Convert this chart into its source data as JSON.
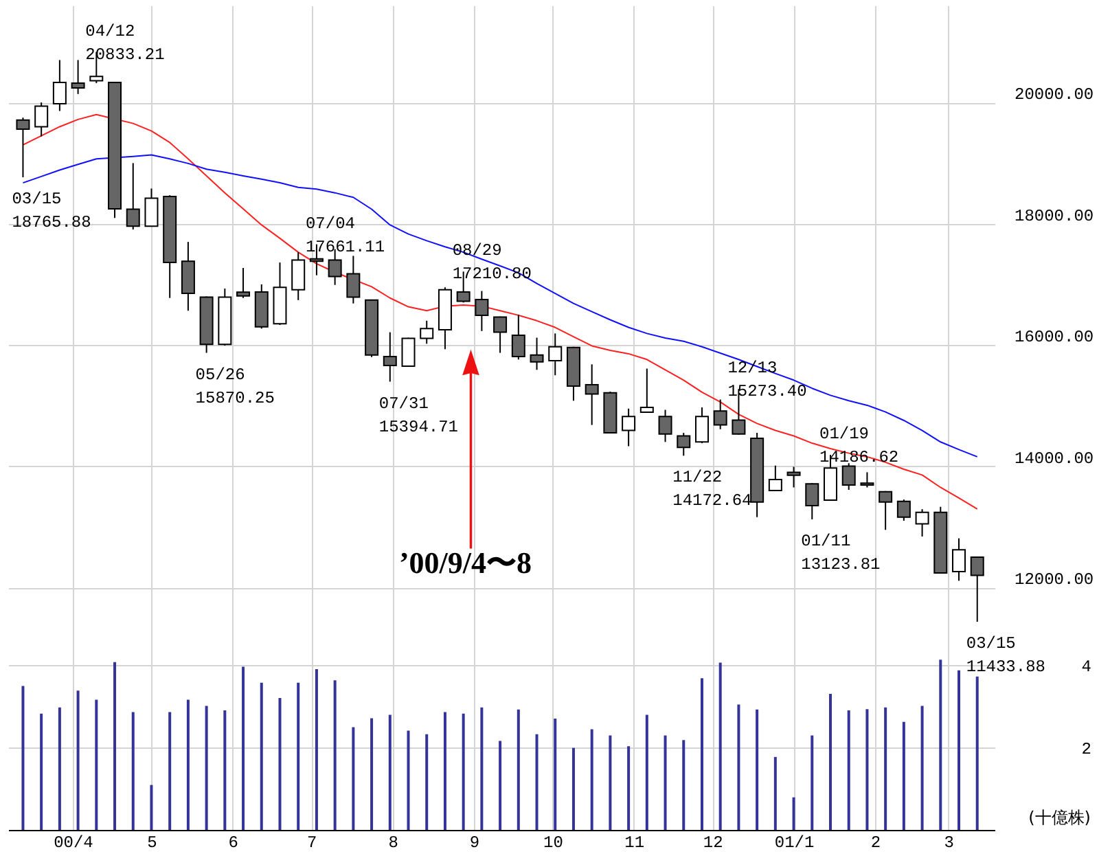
{
  "chart_data": {
    "type": "candlestick",
    "x": [
      "2000-03-13",
      "2000-03-20",
      "2000-03-27",
      "2000-04-03",
      "2000-04-10",
      "2000-04-17",
      "2000-04-24",
      "2000-05-01",
      "2000-05-08",
      "2000-05-15",
      "2000-05-22",
      "2000-05-29",
      "2000-06-05",
      "2000-06-12",
      "2000-06-19",
      "2000-06-26",
      "2000-07-03",
      "2000-07-10",
      "2000-07-17",
      "2000-07-24",
      "2000-07-31",
      "2000-08-07",
      "2000-08-14",
      "2000-08-21",
      "2000-08-28",
      "2000-09-04",
      "2000-09-11",
      "2000-09-18",
      "2000-09-25",
      "2000-10-02",
      "2000-10-09",
      "2000-10-16",
      "2000-10-23",
      "2000-10-30",
      "2000-11-06",
      "2000-11-13",
      "2000-11-20",
      "2000-11-27",
      "2000-12-04",
      "2000-12-11",
      "2000-12-18",
      "2000-12-25",
      "2001-01-01",
      "2001-01-08",
      "2001-01-15",
      "2001-01-22",
      "2001-01-29",
      "2001-02-05",
      "2001-02-12",
      "2001-02-19",
      "2001-02-26",
      "2001-03-05",
      "2001-03-12"
    ],
    "ohlc": [
      [
        19710,
        19750,
        18765.88,
        19560
      ],
      [
        19600,
        20000,
        19440,
        19940
      ],
      [
        19980,
        20700,
        19860,
        20330
      ],
      [
        20320,
        20700,
        20140,
        20240
      ],
      [
        20360,
        20833.21,
        20320,
        20430
      ],
      [
        20330,
        20340,
        18095,
        18245
      ],
      [
        18240,
        19000,
        17905,
        17960
      ],
      [
        17960,
        18580,
        17950,
        18420
      ],
      [
        18450,
        18470,
        16775,
        17360
      ],
      [
        17380,
        17700,
        16565,
        16850
      ],
      [
        16790,
        16800,
        15870.25,
        16010
      ],
      [
        16010,
        16930,
        15990,
        16790
      ],
      [
        16870,
        17270,
        16775,
        16810
      ],
      [
        16875,
        17000,
        16270,
        16300
      ],
      [
        16350,
        17360,
        16330,
        16950
      ],
      [
        16910,
        17530,
        16740,
        17400
      ],
      [
        17420,
        17661.11,
        17150,
        17380
      ],
      [
        17400,
        17580,
        16990,
        17130
      ],
      [
        17175,
        17470,
        16685,
        16790
      ],
      [
        16740,
        16750,
        15800,
        15835
      ],
      [
        15810,
        16210,
        15394.71,
        15660
      ],
      [
        15650,
        16120,
        15640,
        16110
      ],
      [
        16110,
        16400,
        16020,
        16270
      ],
      [
        16250,
        16950,
        15930,
        16910
      ],
      [
        16875,
        17210.8,
        16700,
        16720
      ],
      [
        16750,
        16890,
        16230,
        16490
      ],
      [
        16460,
        16470,
        15870,
        16210
      ],
      [
        16160,
        16500,
        15760,
        15810
      ],
      [
        15835,
        16120,
        15590,
        15720
      ],
      [
        15740,
        16190,
        15500,
        15970
      ],
      [
        15960,
        15970,
        15080,
        15320
      ],
      [
        15345,
        15680,
        14680,
        15190
      ],
      [
        15210,
        15230,
        14540,
        14550
      ],
      [
        14590,
        14950,
        14330,
        14820
      ],
      [
        14890,
        15610,
        14880,
        14970
      ],
      [
        14820,
        14930,
        14400,
        14530
      ],
      [
        14500,
        14550,
        14172.64,
        14310
      ],
      [
        14400,
        14970,
        14380,
        14820
      ],
      [
        14910,
        15100,
        14610,
        14680
      ],
      [
        14760,
        15273.4,
        14520,
        14530
      ],
      [
        14460,
        14550,
        13160,
        13410
      ],
      [
        13600,
        14010,
        13590,
        13780
      ],
      [
        13900,
        13990,
        13650,
        13850
      ],
      [
        13710,
        13720,
        13123.81,
        13350
      ],
      [
        13440,
        14186.62,
        13430,
        13970
      ],
      [
        14000,
        14050,
        13610,
        13690
      ],
      [
        13720,
        13900,
        13650,
        13690
      ],
      [
        13580,
        13590,
        12950,
        13410
      ],
      [
        13420,
        13450,
        13100,
        13160
      ],
      [
        13050,
        13290,
        12840,
        13240
      ],
      [
        13240,
        13330,
        12230,
        12240
      ],
      [
        12260,
        12810,
        12110,
        12620
      ],
      [
        12500,
        12510,
        11433.88,
        12200
      ]
    ],
    "series": [
      {
        "type": "line",
        "color": "#ff2020",
        "values": [
          19300,
          19450,
          19600,
          19720,
          19800,
          null,
          19655,
          19530,
          19340,
          19070,
          18790,
          18510,
          18245,
          17980,
          17760,
          17530,
          17340,
          17200,
          null,
          16960,
          16775,
          16630,
          16565,
          16640,
          16660,
          16640,
          16565,
          16490,
          16400,
          16290,
          16135,
          15985,
          15910,
          15855,
          15760,
          15590,
          15420,
          15220,
          15060,
          14855,
          14705,
          14590,
          14500,
          14380,
          14290,
          14215,
          14155,
          14065,
          13950,
          13855,
          13650,
          13475,
          13295
        ]
      },
      {
        "type": "line",
        "color": "#1010ff",
        "values": [
          18675,
          18780,
          18885,
          18980,
          19070,
          null,
          19110,
          19135,
          19070,
          18995,
          18900,
          18850,
          18790,
          18735,
          18675,
          18600,
          18570,
          18510,
          18435,
          18240,
          17980,
          17830,
          17720,
          17620,
          17530,
          17415,
          17305,
          17190,
          17015,
          16850,
          16685,
          16550,
          16415,
          16290,
          16190,
          16115,
          16060,
          15970,
          15865,
          15760,
          15645,
          15530,
          15420,
          15285,
          15170,
          15080,
          15005,
          14895,
          14755,
          14590,
          14400,
          14275,
          14155
        ]
      },
      {
        "type": "bar",
        "axis": "y2",
        "color": "#333399",
        "values": [
          3.49,
          2.82,
          2.97,
          3.38,
          3.16,
          4.07,
          2.86,
          1.09,
          2.86,
          3.16,
          3.01,
          2.9,
          3.96,
          3.57,
          3.2,
          3.57,
          3.9,
          3.63,
          2.49,
          2.71,
          2.79,
          2.41,
          2.32,
          2.86,
          2.82,
          2.97,
          2.16,
          2.92,
          2.32,
          2.7,
          1.99,
          2.44,
          2.29,
          2.03,
          2.79,
          2.29,
          2.18,
          3.68,
          4.06,
          3.04,
          2.92,
          1.77,
          0.79,
          2.29,
          3.3,
          2.9,
          2.93,
          2.97,
          2.62,
          3.01,
          4.13,
          3.87,
          3.72
        ]
      }
    ],
    "xlim": [
      "2000-03-10",
      "2001-03-16"
    ],
    "xticks": [
      {
        "value": "2000-04-01",
        "label": "00/4"
      },
      {
        "value": "2000-05-01",
        "label": "5"
      },
      {
        "value": "2000-06-01",
        "label": "6"
      },
      {
        "value": "2000-07-01",
        "label": "7"
      },
      {
        "value": "2000-08-01",
        "label": "8"
      },
      {
        "value": "2000-09-01",
        "label": "9"
      },
      {
        "value": "2000-10-01",
        "label": "10"
      },
      {
        "value": "2000-11-01",
        "label": "11"
      },
      {
        "value": "2000-12-01",
        "label": "12"
      },
      {
        "value": "2001-01-01",
        "label": "01/1"
      },
      {
        "value": "2001-02-01",
        "label": "2"
      },
      {
        "value": "2001-03-01",
        "label": "3"
      }
    ],
    "ylim": [
      8000,
      21600
    ],
    "yticks": [
      {
        "value": 12000,
        "label": "12000.00"
      },
      {
        "value": 14000,
        "label": "14000.00"
      },
      {
        "value": 16000,
        "label": "16000.00"
      },
      {
        "value": 18000,
        "label": "18000.00"
      },
      {
        "value": 20000,
        "label": "20000.00"
      }
    ],
    "y2lim": [
      0,
      20
    ],
    "y2ticks": [
      2,
      4
    ],
    "grid": true,
    "annotations": [
      {
        "text": "03/15\n18765.88",
        "x": "2000-03-13",
        "y": 18765.88
      },
      {
        "text": "04/12\n20833.21",
        "x": "2000-04-10",
        "y": 20833.21
      },
      {
        "text": "05/26\n15870.25",
        "x": "2000-05-22",
        "y": 15870.25
      },
      {
        "text": "07/04\n17661.11",
        "x": "2000-07-03",
        "y": 17661.11
      },
      {
        "text": "07/31\n15394.71",
        "x": "2000-07-31",
        "y": 15394.71
      },
      {
        "text": "08/29\n17210.80",
        "x": "2000-08-28",
        "y": 17210.8
      },
      {
        "text": "11/22\n14172.64",
        "x": "2000-11-20",
        "y": 14172.64
      },
      {
        "text": "12/13\n15273.40",
        "x": "2000-12-11",
        "y": 15273.4
      },
      {
        "text": "01/11\n13123.81",
        "x": "2001-01-08",
        "y": 13123.81
      },
      {
        "text": "01/19\n14186.62",
        "x": "2001-01-15",
        "y": 14186.62
      },
      {
        "text": "03/15\n11433.88",
        "x": "2001-03-12",
        "y": 11433.88
      },
      "’00/9/4〜8",
      "(十億株)"
    ]
  }
}
